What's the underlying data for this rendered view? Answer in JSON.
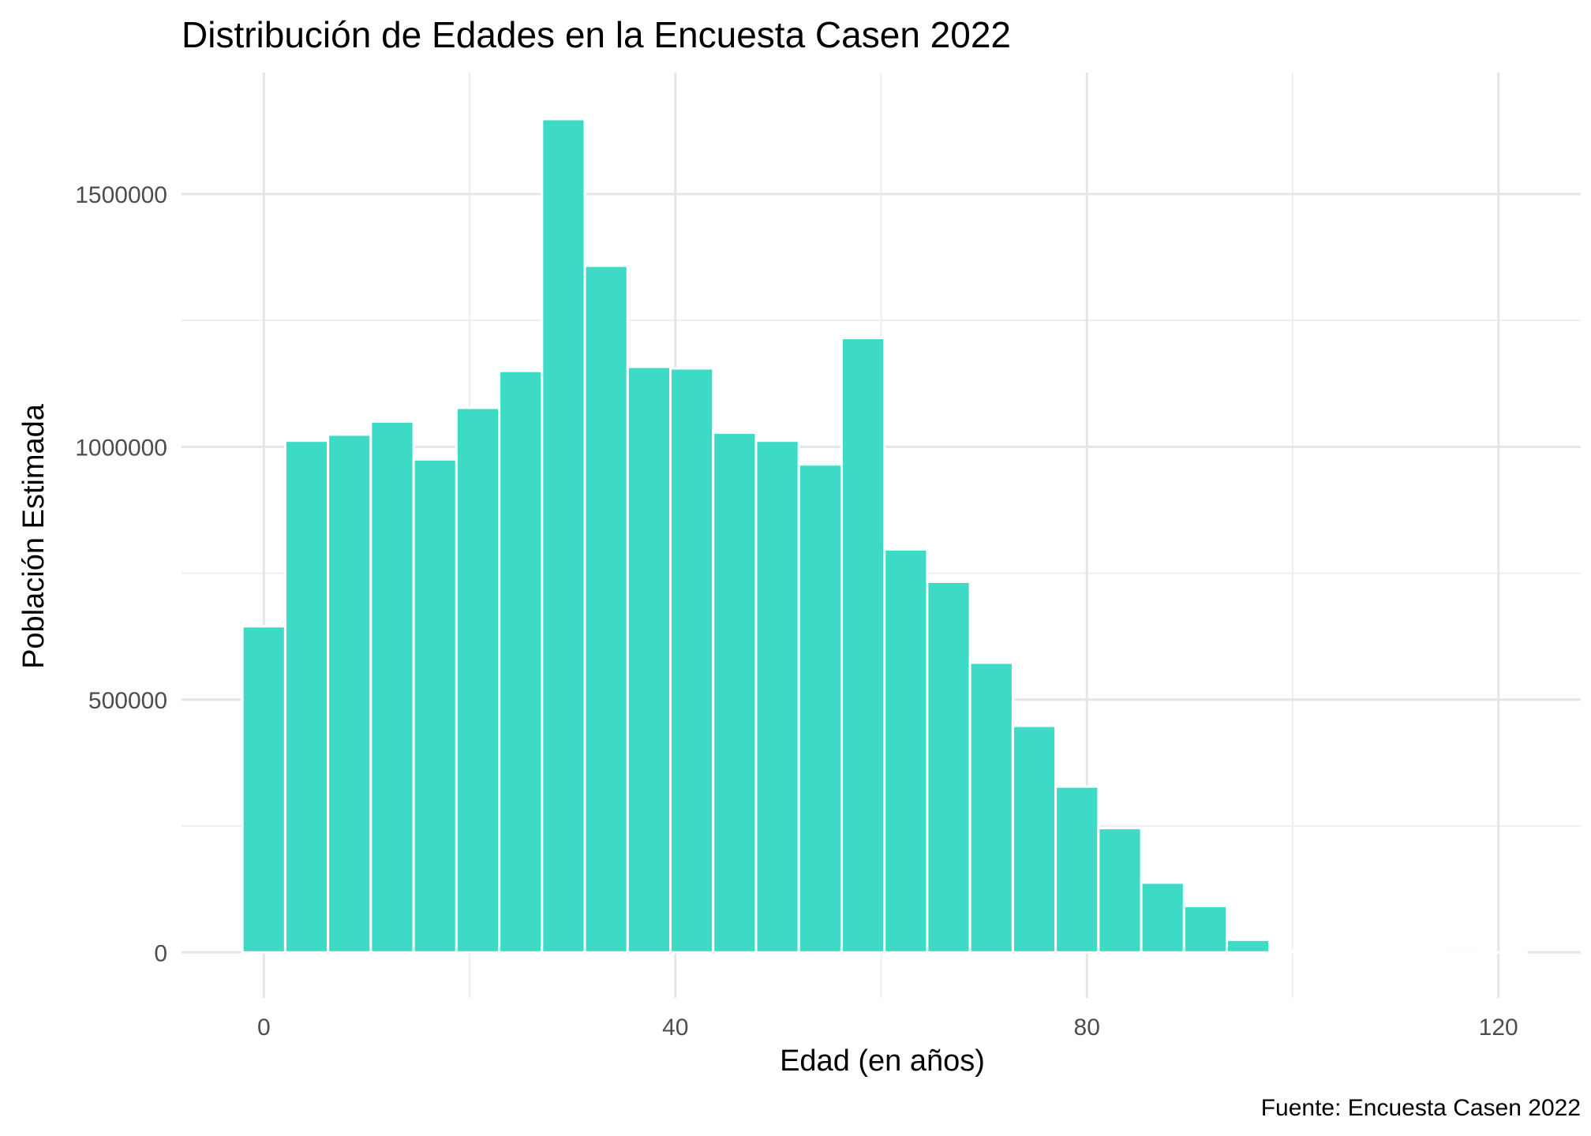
{
  "chart_data": {
    "type": "bar",
    "title": "Distribución de Edades en la Encuesta Casen 2022",
    "xlabel": "Edad (en años)",
    "ylabel": "Población Estimada",
    "caption": "Fuente: Encuesta Casen 2022",
    "bin_width": 4.16,
    "bin_start": -2.08,
    "values": [
      645000,
      1012000,
      1024000,
      1050000,
      975000,
      1077000,
      1150000,
      1648000,
      1358000,
      1158000,
      1155000,
      1028000,
      1012000,
      965000,
      1215000,
      797000,
      733000,
      573000,
      448000,
      328000,
      246000,
      138000,
      92000,
      25000,
      4000,
      2000,
      1000,
      500,
      0,
      200
    ],
    "xlim": [
      -8,
      128
    ],
    "ylim": [
      -90000,
      1740000
    ],
    "xticks": [
      0,
      40,
      80,
      120
    ],
    "xtick_labels": [
      "0",
      "40",
      "80",
      "120"
    ],
    "yticks": [
      0,
      500000,
      1000000,
      1500000
    ],
    "ytick_labels": [
      "0",
      "500000",
      "1000000",
      "1500000"
    ],
    "grid": true,
    "bar_color": "#3DDBC5",
    "bar_outline": "#ffffff",
    "legend": "none"
  }
}
